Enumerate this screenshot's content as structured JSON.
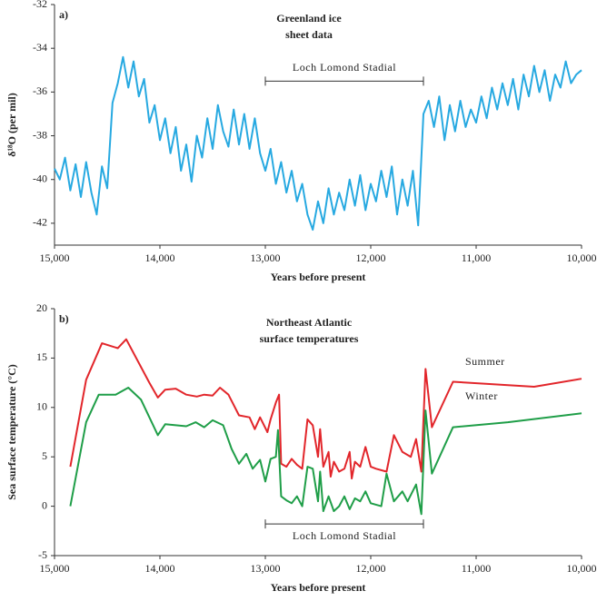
{
  "chart_data": [
    {
      "type": "line",
      "panel_label": "a)",
      "title": [
        "Greenland ice",
        "sheet data"
      ],
      "x_label": "Years before present",
      "y_label": "δ¹⁸O (per mil)",
      "xlim": [
        15000,
        10000
      ],
      "ylim": [
        -43,
        -32
      ],
      "xticks": [
        {
          "value": 15000,
          "label": "15,000"
        },
        {
          "value": 14000,
          "label": "14,000"
        },
        {
          "value": 13000,
          "label": "13,000"
        },
        {
          "value": 12000,
          "label": "12,000"
        },
        {
          "value": 11000,
          "label": "11,000"
        },
        {
          "value": 10000,
          "label": "10,000"
        }
      ],
      "yticks": [
        -32,
        -34,
        -36,
        -38,
        -40,
        -42
      ],
      "annotations": [
        {
          "text": "Loch Lomond Stadial",
          "x_start": 13000,
          "x_end": 11500,
          "y": -35.5
        }
      ],
      "series": [
        {
          "color": "#27a9e1",
          "x": [
            15000,
            14950,
            14900,
            14850,
            14800,
            14750,
            14700,
            14650,
            14600,
            14550,
            14500,
            14450,
            14400,
            14350,
            14300,
            14250,
            14200,
            14150,
            14100,
            14050,
            14000,
            13950,
            13900,
            13850,
            13800,
            13750,
            13700,
            13650,
            13600,
            13550,
            13500,
            13450,
            13400,
            13350,
            13300,
            13250,
            13200,
            13150,
            13100,
            13050,
            13000,
            12950,
            12900,
            12850,
            12800,
            12750,
            12700,
            12650,
            12600,
            12550,
            12500,
            12450,
            12400,
            12350,
            12300,
            12250,
            12200,
            12150,
            12100,
            12050,
            12000,
            11950,
            11900,
            11850,
            11800,
            11750,
            11700,
            11650,
            11600,
            11550,
            11500,
            11450,
            11400,
            11350,
            11300,
            11250,
            11200,
            11150,
            11100,
            11050,
            11000,
            10950,
            10900,
            10850,
            10800,
            10750,
            10700,
            10650,
            10600,
            10550,
            10500,
            10450,
            10400,
            10350,
            10300,
            10250,
            10200,
            10150,
            10100,
            10050,
            10000
          ],
          "values": [
            -39.5,
            -40,
            -39,
            -40.5,
            -39.3,
            -40.8,
            -39.2,
            -40.6,
            -41.6,
            -39.4,
            -40.4,
            -36.5,
            -35.6,
            -34.4,
            -35.8,
            -34.6,
            -36.2,
            -35.4,
            -37.4,
            -36.6,
            -38.2,
            -37.2,
            -38.8,
            -37.6,
            -39.6,
            -38.4,
            -40.1,
            -38,
            -39,
            -37.2,
            -38.6,
            -36.6,
            -37.8,
            -38.5,
            -36.8,
            -38.4,
            -37,
            -38.6,
            -37.2,
            -38.8,
            -39.6,
            -38.6,
            -40.2,
            -39.2,
            -40.6,
            -39.6,
            -41,
            -40.2,
            -41.6,
            -42.3,
            -41,
            -42,
            -40.4,
            -41.6,
            -40.6,
            -41.4,
            -40,
            -41.2,
            -39.8,
            -41.4,
            -40.2,
            -41,
            -39.6,
            -40.8,
            -39.4,
            -41.6,
            -40,
            -41.2,
            -39.6,
            -42.1,
            -37,
            -36.4,
            -37.6,
            -36.2,
            -38.2,
            -36.6,
            -37.8,
            -36.4,
            -37.6,
            -36.8,
            -37.4,
            -36.2,
            -37.2,
            -35.8,
            -36.8,
            -35.6,
            -36.6,
            -35.4,
            -36.8,
            -35.2,
            -36.2,
            -34.8,
            -36,
            -35,
            -36.4,
            -35.2,
            -35.8,
            -34.6,
            -35.6,
            -35.2,
            -35
          ]
        }
      ]
    },
    {
      "type": "line",
      "panel_label": "b)",
      "title": [
        "Northeast Atlantic",
        "surface temperatures"
      ],
      "x_label": "Years before present",
      "y_label": "Sea surface temperature (°C)",
      "xlim": [
        15000,
        10000
      ],
      "ylim": [
        -5,
        20
      ],
      "xticks": [
        {
          "value": 15000,
          "label": "15,000"
        },
        {
          "value": 14000,
          "label": "14,000"
        },
        {
          "value": 13000,
          "label": "13,000"
        },
        {
          "value": 12000,
          "label": "12,000"
        },
        {
          "value": 11000,
          "label": "11,000"
        },
        {
          "value": 10000,
          "label": "10,000"
        }
      ],
      "yticks": [
        20,
        15,
        10,
        5,
        0,
        -5
      ],
      "annotations": [
        {
          "text": "Loch Lomond Stadial",
          "x_start": 13000,
          "x_end": 11500,
          "y": -1.8
        }
      ],
      "series": [
        {
          "name": "Summer",
          "color": "#e2262b",
          "x": [
            14850,
            14700,
            14550,
            14400,
            14320,
            14100,
            14020,
            13950,
            13850,
            13750,
            13650,
            13580,
            13500,
            13430,
            13350,
            13250,
            13150,
            13100,
            13050,
            12980,
            12950,
            12900,
            12870,
            12850,
            12800,
            12750,
            12700,
            12650,
            12600,
            12550,
            12500,
            12480,
            12450,
            12400,
            12380,
            12350,
            12300,
            12250,
            12200,
            12180,
            12150,
            12100,
            12050,
            12000,
            11950,
            11850,
            11780,
            11700,
            11620,
            11570,
            11520,
            11480,
            11420,
            11220,
            10450,
            10000
          ],
          "values": [
            4,
            12.8,
            16.5,
            16,
            16.9,
            12.5,
            11,
            11.8,
            11.9,
            11.3,
            11.1,
            11.3,
            11.2,
            12,
            11.3,
            9.2,
            9,
            7.8,
            9,
            7.5,
            8.8,
            10.5,
            11.3,
            4.3,
            4,
            4.8,
            4.2,
            3.8,
            8.8,
            8.2,
            5,
            7.8,
            4,
            5.5,
            3,
            4.5,
            3.5,
            3.8,
            5.5,
            2.8,
            4.5,
            4,
            6,
            4,
            3.8,
            3.5,
            7.2,
            5.5,
            5,
            6.8,
            3.5,
            13.9,
            8,
            12.6,
            12.1,
            12.9
          ]
        },
        {
          "name": "Winter",
          "color": "#1f9e48",
          "x": [
            14850,
            14700,
            14580,
            14420,
            14300,
            14180,
            14020,
            13950,
            13750,
            13660,
            13580,
            13500,
            13400,
            13320,
            13250,
            13180,
            13120,
            13050,
            13000,
            12950,
            12900,
            12880,
            12850,
            12800,
            12750,
            12700,
            12650,
            12600,
            12550,
            12500,
            12480,
            12450,
            12400,
            12350,
            12300,
            12250,
            12200,
            12150,
            12100,
            12050,
            12000,
            11900,
            11850,
            11780,
            11700,
            11650,
            11570,
            11520,
            11480,
            11420,
            11220,
            10700,
            10000
          ],
          "values": [
            0,
            8.5,
            11.3,
            11.3,
            12,
            10.8,
            7.2,
            8.3,
            8.1,
            8.5,
            8,
            8.7,
            8.2,
            5.8,
            4.3,
            5.3,
            3.8,
            4.7,
            2.5,
            4.8,
            5,
            7.7,
            1,
            0.6,
            0.3,
            1,
            0,
            4,
            3.8,
            0.5,
            3.5,
            -0.5,
            1,
            -0.5,
            0,
            1,
            -0.3,
            0.8,
            0.5,
            1.5,
            0.3,
            0,
            3.3,
            0.5,
            1.5,
            0.5,
            2.2,
            -0.8,
            9.7,
            3.3,
            8,
            8.5,
            9.4
          ]
        }
      ]
    }
  ]
}
